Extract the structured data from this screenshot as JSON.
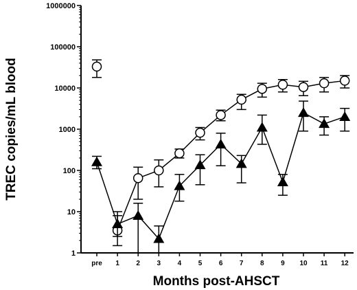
{
  "chart_data": {
    "type": "line",
    "title": "",
    "xlabel": "Months post-AHSCT",
    "ylabel": "TREC copies/mL blood",
    "y_scale": "log",
    "ylim": [
      1,
      1000000
    ],
    "y_ticks": [
      1,
      10,
      100,
      1000,
      10000,
      100000,
      1000000
    ],
    "y_tick_labels": [
      "1",
      "10",
      "100",
      "1000",
      "10000",
      "100000",
      "1000000"
    ],
    "categories": [
      "pre",
      "1",
      "2",
      "3",
      "4",
      "5",
      "6",
      "7",
      "8",
      "9",
      "10",
      "11",
      "12"
    ],
    "grid": false,
    "legend": "none",
    "series": [
      {
        "marker": "open-circle",
        "color": "#000000",
        "values": [
          33000,
          3.5,
          65,
          100,
          260,
          820,
          2200,
          5200,
          9500,
          12000,
          10500,
          13000,
          15000
        ],
        "err_low": [
          18000,
          1.5,
          20,
          40,
          200,
          550,
          1600,
          3000,
          6000,
          8000,
          6500,
          8000,
          10000
        ],
        "err_high": [
          48000,
          8,
          120,
          180,
          330,
          1100,
          2900,
          7000,
          13000,
          16000,
          14500,
          18000,
          20000
        ],
        "connect_from_index": 1
      },
      {
        "marker": "filled-triangle",
        "color": "#000000",
        "values": [
          160,
          5,
          8,
          2.2,
          42,
          135,
          430,
          145,
          1100,
          52,
          2500,
          1350,
          2000
        ],
        "err_low": [
          110,
          2.5,
          1,
          1,
          18,
          45,
          130,
          50,
          430,
          25,
          900,
          720,
          900
        ],
        "err_high": [
          220,
          10,
          16,
          4.5,
          80,
          240,
          800,
          230,
          2200,
          80,
          4800,
          2000,
          3200
        ],
        "connect_from_index": 0
      }
    ]
  }
}
